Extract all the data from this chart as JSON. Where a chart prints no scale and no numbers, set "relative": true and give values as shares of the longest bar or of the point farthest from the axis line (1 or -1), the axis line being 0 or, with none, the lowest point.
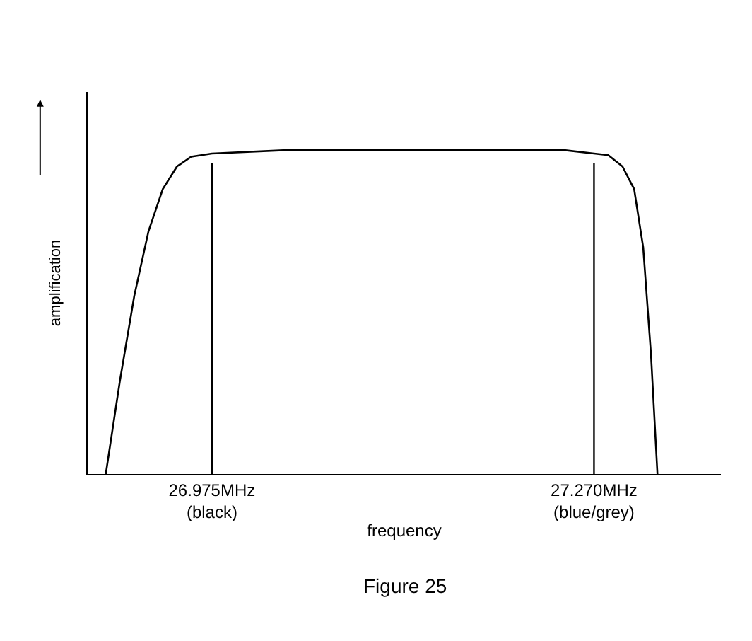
{
  "chart_data": {
    "type": "line",
    "relative": true,
    "xlabel": "frequency",
    "ylabel": "amplification",
    "x": [
      26.893,
      26.904,
      26.915,
      26.926,
      26.937,
      26.948,
      26.959,
      26.975,
      27.03,
      27.139,
      27.248,
      27.27,
      27.281,
      27.292,
      27.301,
      27.308,
      27.314,
      27.319
    ],
    "series": [
      {
        "color": "#000000",
        "values": [
          0,
          0.29,
          0.55,
          0.75,
          0.88,
          0.95,
          0.98,
          0.99,
          1,
          1,
          1,
          0.99,
          0.985,
          0.95,
          0.88,
          0.7,
          0.37,
          0
        ]
      }
    ],
    "xlim": [
      26.879,
      27.368
    ],
    "xticks": [
      {
        "value": 26.975,
        "label": "26.975MHz\n(black)"
      },
      {
        "value": 27.27,
        "label": "27.270MHz\n(blue/grey)"
      }
    ],
    "ref_lines": [
      {
        "axis": "x",
        "value": 26.975,
        "color": "#000000"
      },
      {
        "axis": "x",
        "value": 27.27,
        "color": "#000000"
      }
    ],
    "annotations": [
      "Figure 25"
    ],
    "legend": false,
    "marker": "none",
    "line_style": "solid"
  }
}
